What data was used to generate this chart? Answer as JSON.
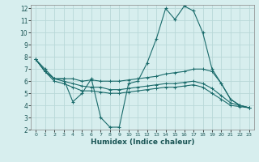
{
  "xlabel": "Humidex (Indice chaleur)",
  "background_color": "#d7eeee",
  "grid_color": "#b8d8d8",
  "line_color": "#1a6b6b",
  "xlim": [
    -0.5,
    23.5
  ],
  "ylim": [
    2,
    12.3
  ],
  "yticks": [
    2,
    3,
    4,
    5,
    6,
    7,
    8,
    9,
    10,
    11,
    12
  ],
  "xticks": [
    0,
    1,
    2,
    3,
    4,
    5,
    6,
    7,
    8,
    9,
    10,
    11,
    12,
    13,
    14,
    15,
    16,
    17,
    18,
    19,
    20,
    21,
    22,
    23
  ],
  "series1_x": [
    0,
    1,
    2,
    3,
    4,
    5,
    6,
    7,
    8,
    9,
    10,
    11,
    12,
    13,
    14,
    15,
    16,
    17,
    18,
    19,
    20,
    21,
    22,
    23
  ],
  "series1_y": [
    7.8,
    7.0,
    6.2,
    6.2,
    4.3,
    5.0,
    6.2,
    3.0,
    2.2,
    2.2,
    5.8,
    6.0,
    7.5,
    9.5,
    12.0,
    11.1,
    12.2,
    11.8,
    10.0,
    7.0,
    5.8,
    4.5,
    4.0,
    3.8
  ],
  "series2_x": [
    0,
    1,
    2,
    3,
    4,
    5,
    6,
    7,
    8,
    9,
    10,
    11,
    12,
    13,
    14,
    15,
    16,
    17,
    18,
    19,
    20,
    21,
    22,
    23
  ],
  "series2_y": [
    7.8,
    6.8,
    6.2,
    6.2,
    6.2,
    6.0,
    6.1,
    6.0,
    6.0,
    6.0,
    6.1,
    6.2,
    6.3,
    6.4,
    6.6,
    6.7,
    6.8,
    7.0,
    7.0,
    6.8,
    5.8,
    4.5,
    4.0,
    3.8
  ],
  "series3_x": [
    0,
    1,
    2,
    3,
    4,
    5,
    6,
    7,
    8,
    9,
    10,
    11,
    12,
    13,
    14,
    15,
    16,
    17,
    18,
    19,
    20,
    21,
    22,
    23
  ],
  "series3_y": [
    7.8,
    6.8,
    6.2,
    6.0,
    5.8,
    5.6,
    5.5,
    5.5,
    5.3,
    5.3,
    5.4,
    5.5,
    5.6,
    5.7,
    5.8,
    5.8,
    5.9,
    6.0,
    5.8,
    5.4,
    4.8,
    4.2,
    4.0,
    3.8
  ],
  "series4_x": [
    0,
    1,
    2,
    3,
    4,
    5,
    6,
    7,
    8,
    9,
    10,
    11,
    12,
    13,
    14,
    15,
    16,
    17,
    18,
    19,
    20,
    21,
    22,
    23
  ],
  "series4_y": [
    7.8,
    6.8,
    6.0,
    5.8,
    5.5,
    5.2,
    5.2,
    5.1,
    5.0,
    5.0,
    5.1,
    5.2,
    5.3,
    5.4,
    5.5,
    5.5,
    5.6,
    5.7,
    5.5,
    5.0,
    4.5,
    4.0,
    3.9,
    3.8
  ]
}
